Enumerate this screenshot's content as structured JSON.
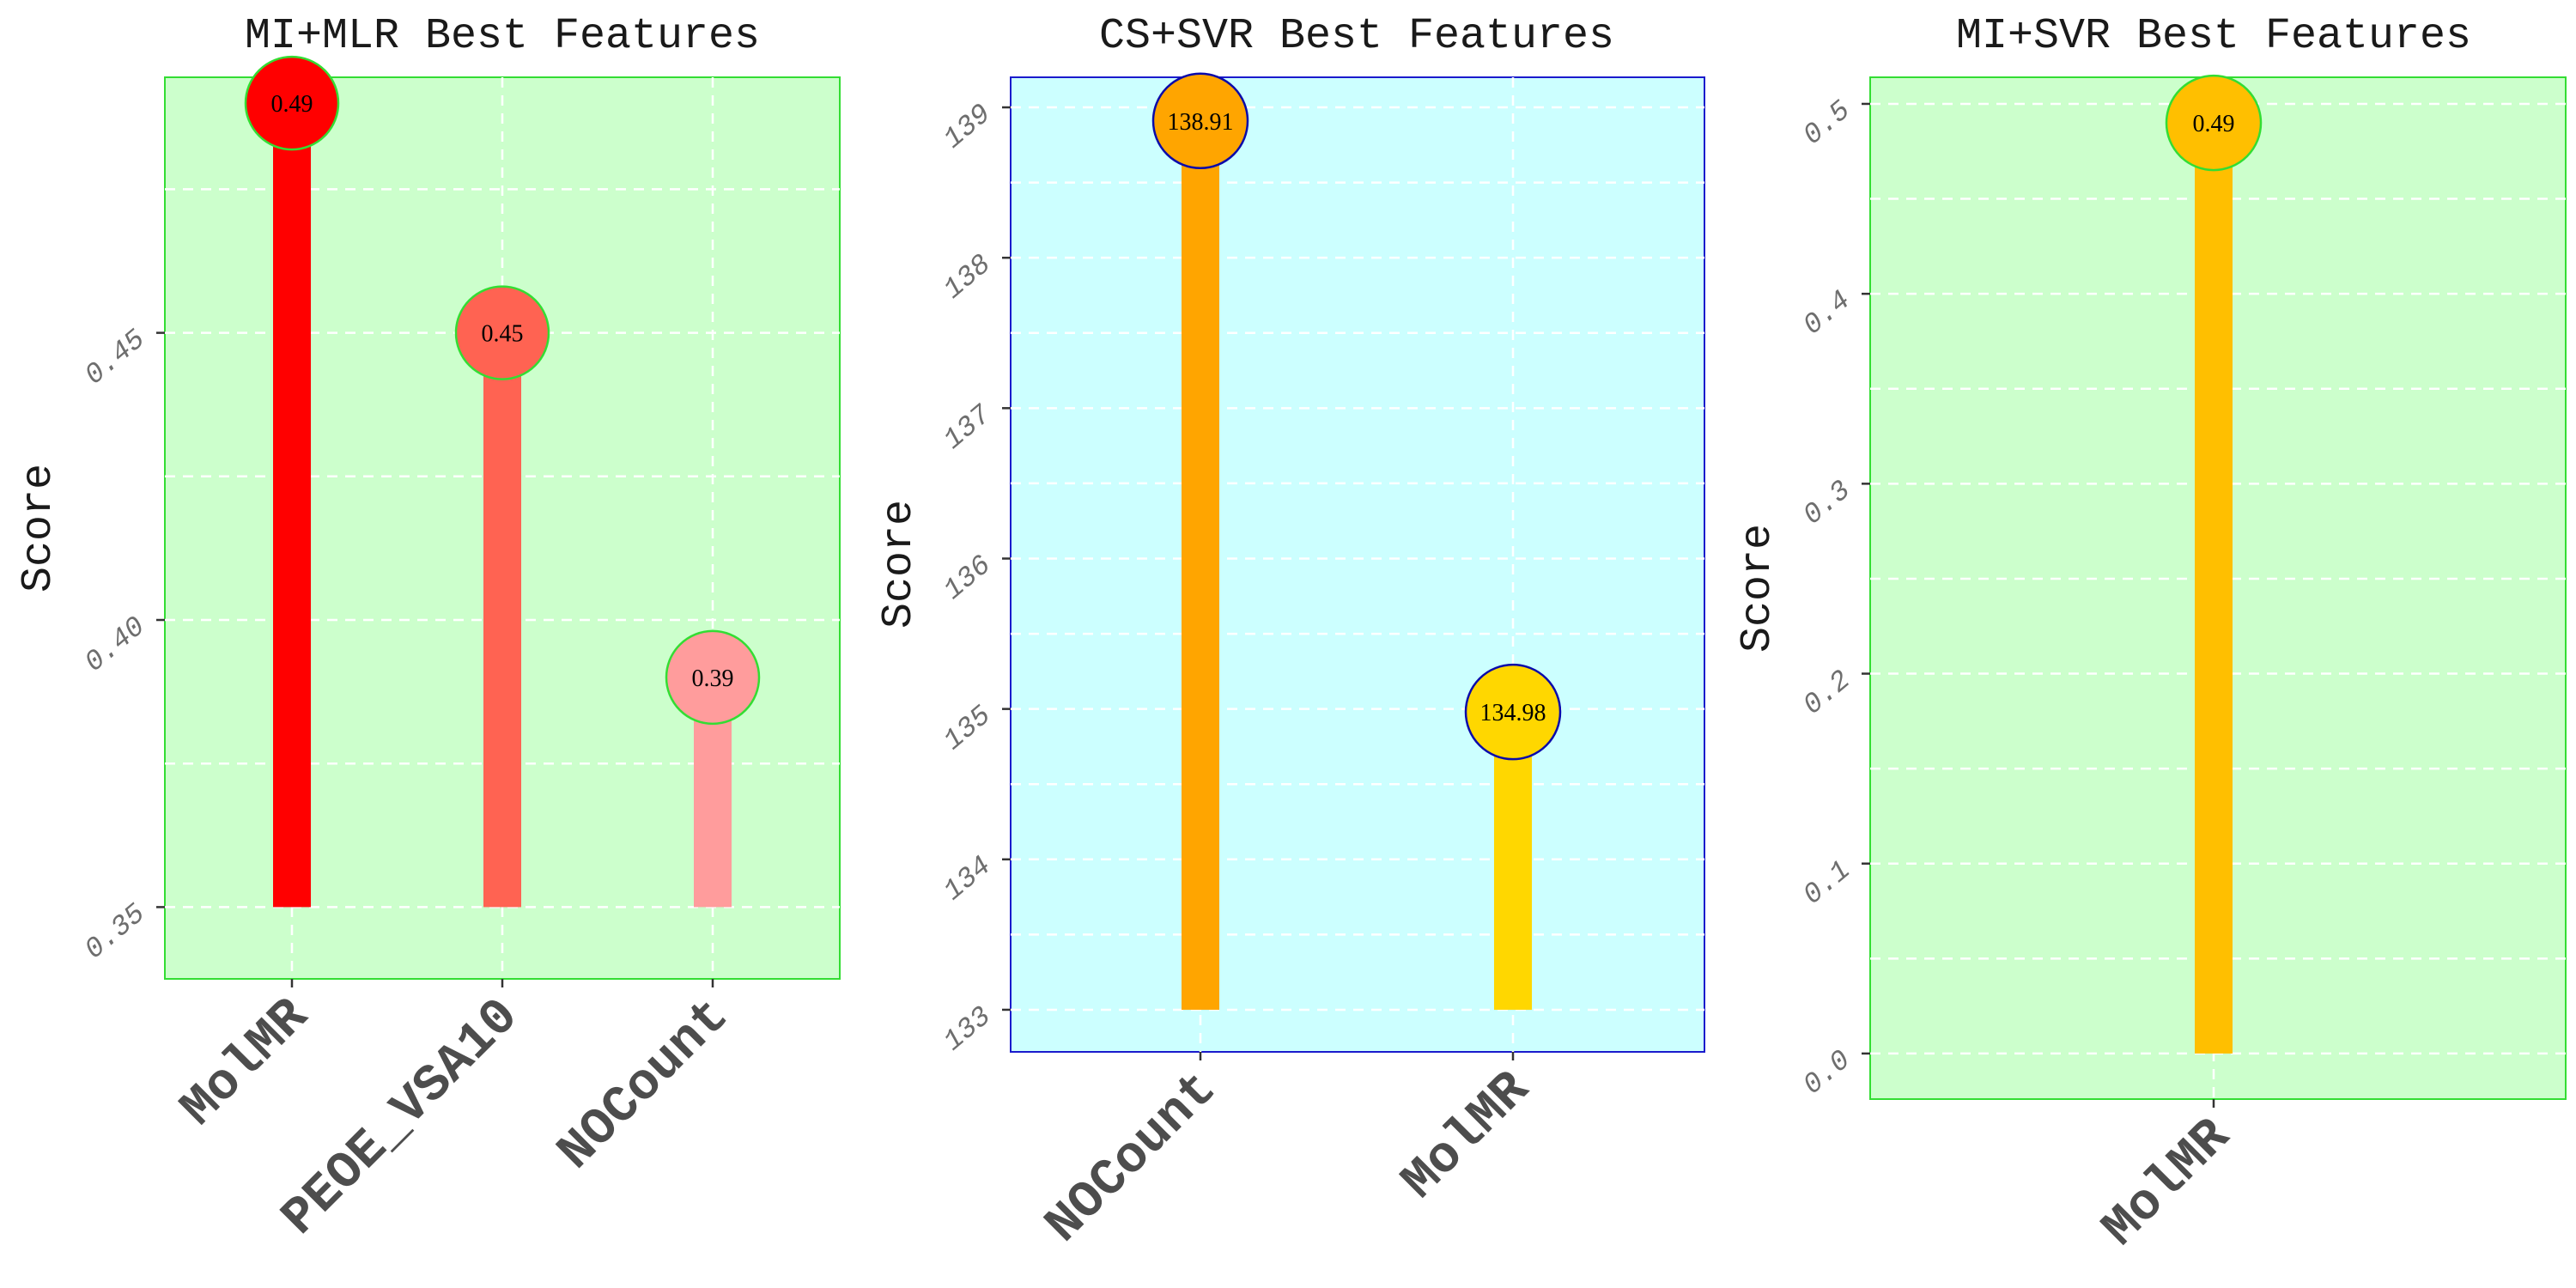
{
  "chart_data": [
    {
      "type": "lollipop",
      "title": "MI+MLR Best Features",
      "xlabel": "",
      "ylabel": "Score",
      "categories": [
        "MolMR",
        "PEOE_VSA10",
        "NOCount"
      ],
      "values": [
        0.49,
        0.45,
        0.39
      ],
      "value_labels": [
        "0.49",
        "0.45",
        "0.39"
      ],
      "baseline": 0.35,
      "ylim": [
        0.3375,
        0.4945
      ],
      "y_ticks": [
        0.35,
        0.4,
        0.45
      ],
      "y_tick_labels": [
        "0.35",
        "0.40",
        "0.45"
      ],
      "panel_bg": "#ccffcc",
      "panel_border": "#33dd33",
      "point_outline": "#33dd33",
      "colors": [
        "#ff0000",
        "#ff6352",
        "#ff9c9c"
      ],
      "grid": true
    },
    {
      "type": "lollipop",
      "title": "CS+SVR Best Features",
      "xlabel": "",
      "ylabel": "Score",
      "categories": [
        "NOCount",
        "MolMR"
      ],
      "values": [
        138.91,
        134.98
      ],
      "value_labels": [
        "138.91",
        "134.98"
      ],
      "baseline": 133,
      "ylim": [
        132.72,
        139.2
      ],
      "y_ticks": [
        133,
        134,
        135,
        136,
        137,
        138,
        139
      ],
      "y_tick_labels": [
        "133",
        "134",
        "135",
        "136",
        "137",
        "138",
        "139"
      ],
      "panel_bg": "#ccffff",
      "panel_border": "#1a1acc",
      "point_outline": "#0a0aaa",
      "colors": [
        "#ffa500",
        "#ffd700"
      ],
      "grid": true
    },
    {
      "type": "lollipop",
      "title": "MI+SVR Best Features",
      "xlabel": "",
      "ylabel": "Score",
      "categories": [
        "MolMR"
      ],
      "values": [
        0.49
      ],
      "value_labels": [
        "0.49"
      ],
      "baseline": 0,
      "ylim": [
        -0.024,
        0.514
      ],
      "y_ticks": [
        0.0,
        0.1,
        0.2,
        0.3,
        0.4,
        0.5
      ],
      "y_tick_labels": [
        "0.0",
        "0.1",
        "0.2",
        "0.3",
        "0.4",
        "0.5"
      ],
      "panel_bg": "#ccffcc",
      "panel_border": "#33dd33",
      "point_outline": "#33dd33",
      "colors": [
        "#ffbf00"
      ],
      "grid": true
    }
  ]
}
